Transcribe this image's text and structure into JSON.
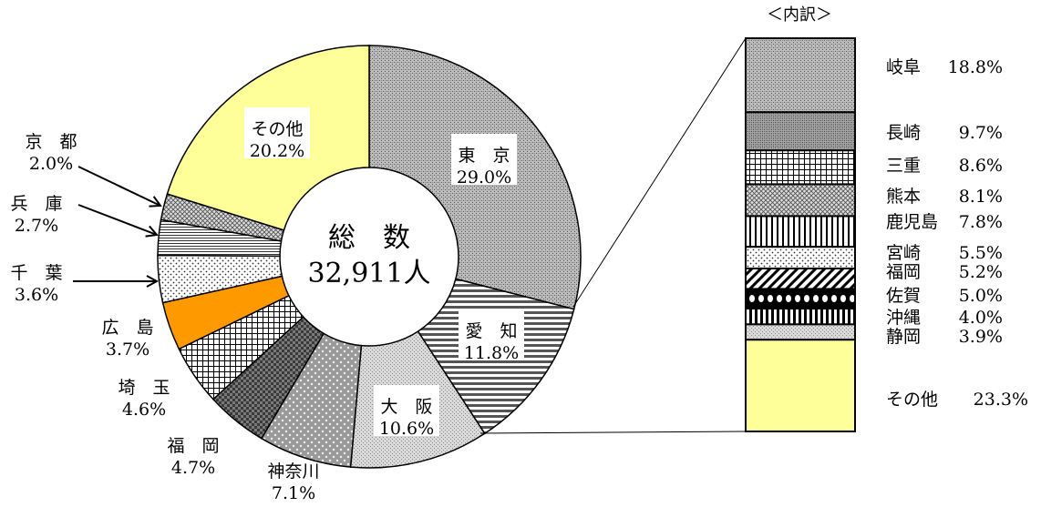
{
  "chart_data": [
    {
      "type": "pie",
      "variant": "donut",
      "center_label": {
        "line1": "総　数",
        "line2": "32,911人"
      },
      "slices": [
        {
          "label": "東　京",
          "value": 29.0,
          "value_text": "29.0%",
          "pattern": "gray-dots",
          "color": "#a8a8a8"
        },
        {
          "label": "愛　知",
          "value": 11.8,
          "value_text": "11.8%",
          "pattern": "hstripes",
          "color": "#ffffff"
        },
        {
          "label": "大　阪",
          "value": 10.6,
          "value_text": "10.6%",
          "pattern": "light-dots",
          "color": "#cfcfcf"
        },
        {
          "label": "神奈川",
          "value": 7.1,
          "value_text": "7.1%",
          "pattern": "sparse-dots",
          "color": "#c4c4c4"
        },
        {
          "label": "福　岡",
          "value": 4.7,
          "value_text": "4.7%",
          "pattern": "dark-checker",
          "color": "#6e6e6e"
        },
        {
          "label": "埼　玉",
          "value": 4.6,
          "value_text": "4.6%",
          "pattern": "grid",
          "color": "#ffffff"
        },
        {
          "label": "広　島",
          "value": 3.7,
          "value_text": "3.7%",
          "pattern": "solid",
          "color": "#ff9900"
        },
        {
          "label": "千　葉",
          "value": 3.6,
          "value_text": "3.6%",
          "pattern": "dots",
          "color": "#ffffff"
        },
        {
          "label": "兵　庫",
          "value": 2.7,
          "value_text": "2.7%",
          "pattern": "fine-hlines",
          "color": "#ffffff"
        },
        {
          "label": "京　都",
          "value": 2.0,
          "value_text": "2.0%",
          "pattern": "crosshatch",
          "color": "#ffffff"
        },
        {
          "label": "その他",
          "value": 20.2,
          "value_text": "20.2%",
          "pattern": "solid",
          "color": "#ffff99"
        }
      ]
    },
    {
      "type": "bar",
      "variant": "stacked-100",
      "title": "＜内訳＞",
      "segments": [
        {
          "label": "岐阜",
          "value": 18.8,
          "value_text": "18.8%",
          "pattern": "gray-dots",
          "color": "#a8a8a8"
        },
        {
          "label": "長崎",
          "value": 9.7,
          "value_text": "9.7%",
          "pattern": "gray-dots",
          "color": "#8f8f8f"
        },
        {
          "label": "三重",
          "value": 8.6,
          "value_text": "8.6%",
          "pattern": "grid",
          "color": "#ffffff"
        },
        {
          "label": "熊本",
          "value": 8.1,
          "value_text": "8.1%",
          "pattern": "crosshatch",
          "color": "#ffffff"
        },
        {
          "label": "鹿児島",
          "value": 7.8,
          "value_text": "7.8%",
          "pattern": "vstripes",
          "color": "#ffffff"
        },
        {
          "label": "宮崎",
          "value": 5.5,
          "value_text": "5.5%",
          "pattern": "dots",
          "color": "#ffffff"
        },
        {
          "label": "福岡",
          "value": 5.2,
          "value_text": "5.2%",
          "pattern": "diagonal",
          "color": "#ffffff"
        },
        {
          "label": "佐賀",
          "value": 5.0,
          "value_text": "5.0%",
          "pattern": "chain",
          "color": "#ffffff"
        },
        {
          "label": "沖縄",
          "value": 4.0,
          "value_text": "4.0%",
          "pattern": "vstripes-bold",
          "color": "#ffffff"
        },
        {
          "label": "静岡",
          "value": 3.9,
          "value_text": "3.9%",
          "pattern": "light-dots",
          "color": "#cfcfcf"
        },
        {
          "label": "その他",
          "value": 23.3,
          "value_text": "23.3%",
          "pattern": "solid",
          "color": "#ffff99"
        }
      ]
    }
  ]
}
